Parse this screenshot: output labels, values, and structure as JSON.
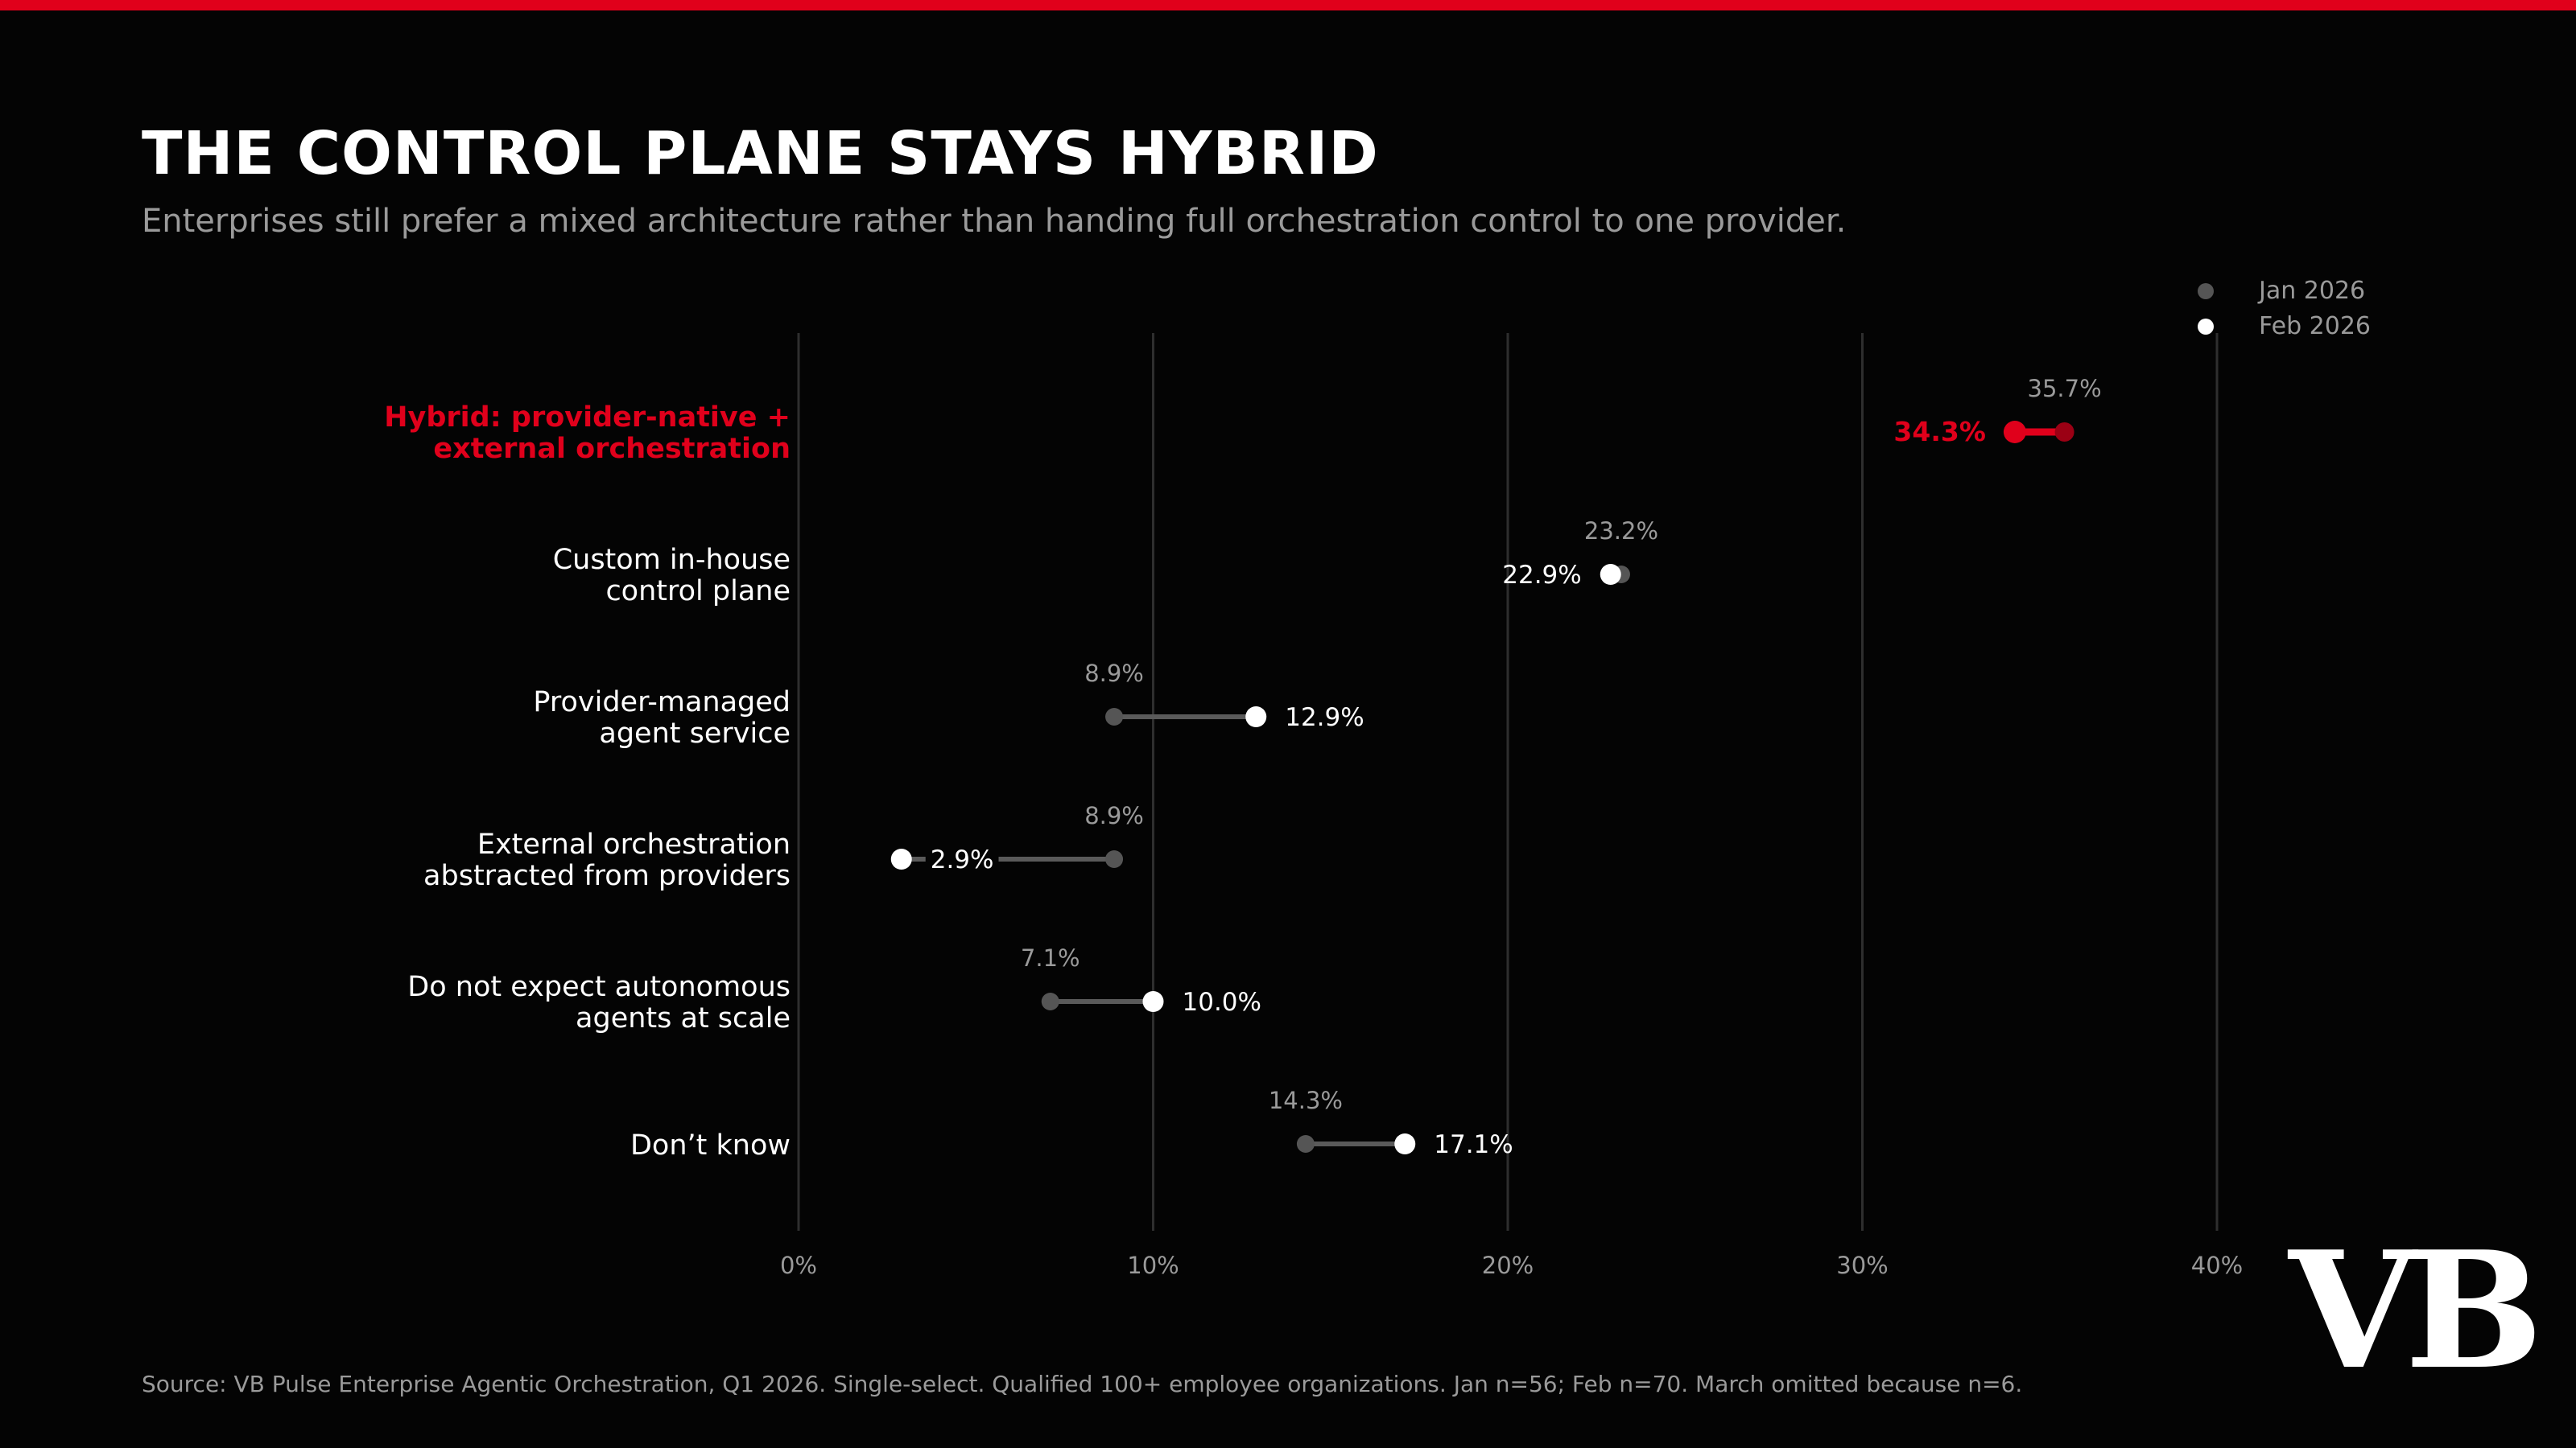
{
  "header": {
    "title": "THE CONTROL PLANE STAYS HYBRID",
    "subtitle": "Enterprises still prefer a mixed architecture rather than handing full orchestration control to one provider."
  },
  "footer": {
    "source": "Source: VB Pulse Enterprise Agentic Orchestration, Q1 2026. Single-select. Qualified 100+ employee organizations. Jan n=56; Feb n=70. March omitted because n=6.",
    "logo_text": "VB"
  },
  "colors": {
    "accent": "#e0001b",
    "accent_dark": "#9b0014",
    "jan": "#555555",
    "feb": "#ffffff",
    "connector": "#5a5a5a",
    "grid": "#2e2e2e",
    "muted_text": "#9a9a9a"
  },
  "chart_data": {
    "type": "dumbbell",
    "title": "THE CONTROL PLANE STAYS HYBRID",
    "subtitle": "Enterprises still prefer a mixed architecture rather than handing full orchestration control to one provider.",
    "x_axis": {
      "min": 0,
      "max": 40,
      "ticks": [
        0,
        10,
        20,
        30,
        40
      ],
      "tick_labels": [
        "0%",
        "10%",
        "20%",
        "30%",
        "40%"
      ]
    },
    "grid": true,
    "legend": {
      "placement": "top-right",
      "entries": [
        {
          "name": "Jan 2026",
          "color": "#555555"
        },
        {
          "name": "Feb 2026",
          "color": "#ffffff"
        }
      ]
    },
    "series": [
      {
        "name": "Jan 2026",
        "values": [
          35.7,
          23.2,
          8.9,
          8.9,
          7.1,
          14.3
        ]
      },
      {
        "name": "Feb 2026",
        "values": [
          34.3,
          22.9,
          12.9,
          2.9,
          10.0,
          17.1
        ]
      }
    ],
    "categories": [
      {
        "lines": [
          "Hybrid: provider-native +",
          "external orchestration"
        ],
        "highlight": true
      },
      {
        "lines": [
          "Custom in-house",
          "control plane"
        ],
        "highlight": false
      },
      {
        "lines": [
          "Provider-managed",
          "agent service"
        ],
        "highlight": false
      },
      {
        "lines": [
          "External orchestration",
          "abstracted from providers"
        ],
        "highlight": false
      },
      {
        "lines": [
          "Do not expect autonomous",
          "agents at scale"
        ],
        "highlight": false
      },
      {
        "lines": [
          "Don’t know"
        ],
        "highlight": false
      }
    ],
    "jan_labels": [
      "35.7%",
      "23.2%",
      "8.9%",
      "8.9%",
      "7.1%",
      "14.3%"
    ],
    "feb_labels": [
      "34.3%",
      "22.9%",
      "12.9%",
      "2.9%",
      "10.0%",
      "17.1%"
    ]
  }
}
